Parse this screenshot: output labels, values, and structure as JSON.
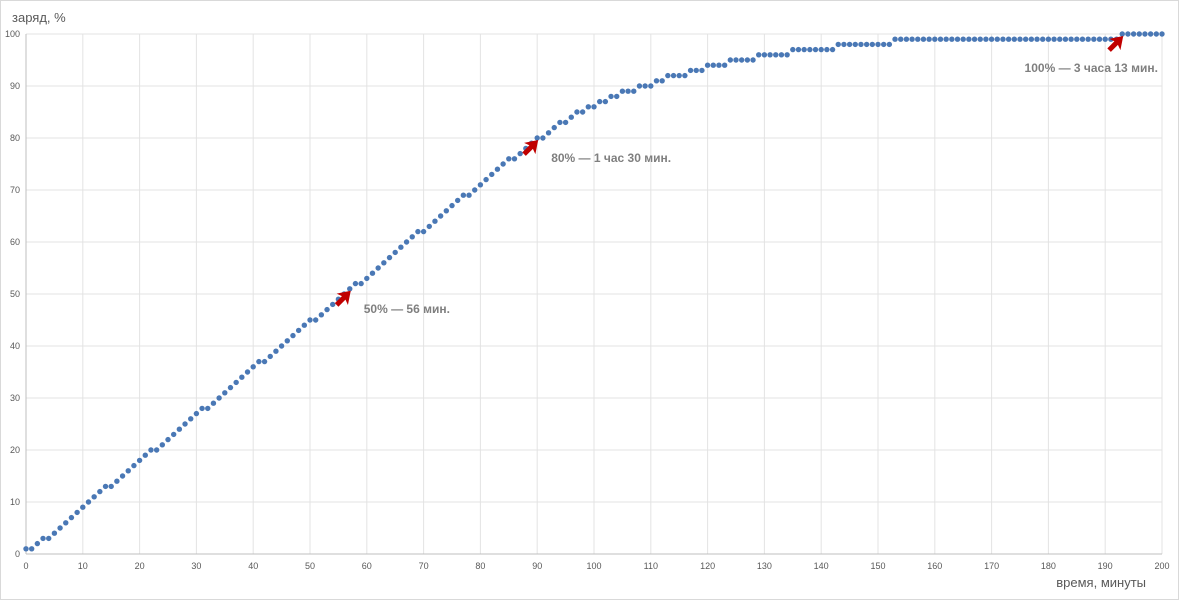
{
  "chart_data": {
    "type": "scatter",
    "xlabel": "время, минуты",
    "ylabel": "заряд, %",
    "xlim": [
      0,
      200
    ],
    "ylim": [
      0,
      100
    ],
    "x_ticks": [
      "0",
      "10",
      "20",
      "30",
      "40",
      "50",
      "60",
      "70",
      "80",
      "90",
      "100",
      "110",
      "120",
      "130",
      "140",
      "150",
      "160",
      "170",
      "180",
      "190",
      "200"
    ],
    "y_ticks": [
      "0",
      "10",
      "20",
      "30",
      "40",
      "50",
      "60",
      "70",
      "80",
      "90",
      "100"
    ],
    "grid": true,
    "marker_color": "#4a78b5",
    "annotation_color": "#c00000",
    "series": [
      {
        "x": [
          0,
          1,
          2,
          3,
          4,
          5,
          6,
          7,
          8,
          9,
          10,
          11,
          12,
          13,
          14,
          15,
          16,
          17,
          18,
          19,
          20,
          21,
          22,
          23,
          24,
          25,
          26,
          27,
          28,
          29,
          30,
          31,
          32,
          33,
          34,
          35,
          36,
          37,
          38,
          39,
          40,
          41,
          42,
          43,
          44,
          45,
          46,
          47,
          48,
          49,
          50,
          51,
          52,
          53,
          54,
          55,
          56,
          57,
          58,
          59,
          60,
          61,
          62,
          63,
          64,
          65,
          66,
          67,
          68,
          69,
          70,
          71,
          72,
          73,
          74,
          75,
          76,
          77,
          78,
          79,
          80,
          81,
          82,
          83,
          84,
          85,
          86,
          87,
          88,
          89,
          90,
          91,
          92,
          93,
          94,
          95,
          96,
          97,
          98,
          99,
          100,
          101,
          102,
          103,
          104,
          105,
          106,
          107,
          108,
          109,
          110,
          111,
          112,
          113,
          114,
          115,
          116,
          117,
          118,
          119,
          120,
          121,
          122,
          123,
          124,
          125,
          126,
          127,
          128,
          129,
          130,
          131,
          132,
          133,
          134,
          135,
          136,
          137,
          138,
          139,
          140,
          141,
          142,
          143,
          144,
          145,
          146,
          147,
          148,
          149,
          150,
          151,
          152,
          153,
          154,
          155,
          156,
          157,
          158,
          159,
          160,
          161,
          162,
          163,
          164,
          165,
          166,
          167,
          168,
          169,
          170,
          171,
          172,
          173,
          174,
          175,
          176,
          177,
          178,
          179,
          180,
          181,
          182,
          183,
          184,
          185,
          186,
          187,
          188,
          189,
          190,
          191,
          192,
          193,
          194,
          195,
          196,
          197,
          198,
          199,
          200
        ],
        "y": [
          1,
          1,
          2,
          3,
          3,
          4,
          5,
          6,
          7,
          8,
          9,
          10,
          11,
          12,
          13,
          13,
          14,
          15,
          16,
          17,
          18,
          19,
          20,
          20,
          21,
          22,
          23,
          24,
          25,
          26,
          27,
          28,
          28,
          29,
          30,
          31,
          32,
          33,
          34,
          35,
          36,
          37,
          37,
          38,
          39,
          40,
          41,
          42,
          43,
          44,
          45,
          45,
          46,
          47,
          48,
          49,
          50,
          51,
          52,
          52,
          53,
          54,
          55,
          56,
          57,
          58,
          59,
          60,
          61,
          62,
          62,
          63,
          64,
          65,
          66,
          67,
          68,
          69,
          69,
          70,
          71,
          72,
          73,
          74,
          75,
          76,
          76,
          77,
          78,
          79,
          80,
          80,
          81,
          82,
          83,
          83,
          84,
          85,
          85,
          86,
          86,
          87,
          87,
          88,
          88,
          89,
          89,
          89,
          90,
          90,
          90,
          91,
          91,
          92,
          92,
          92,
          92,
          93,
          93,
          93,
          94,
          94,
          94,
          94,
          95,
          95,
          95,
          95,
          95,
          96,
          96,
          96,
          96,
          96,
          96,
          97,
          97,
          97,
          97,
          97,
          97,
          97,
          97,
          98,
          98,
          98,
          98,
          98,
          98,
          98,
          98,
          98,
          98,
          99,
          99,
          99,
          99,
          99,
          99,
          99,
          99,
          99,
          99,
          99,
          99,
          99,
          99,
          99,
          99,
          99,
          99,
          99,
          99,
          99,
          99,
          99,
          99,
          99,
          99,
          99,
          99,
          99,
          99,
          99,
          99,
          99,
          99,
          99,
          99,
          99,
          99,
          99,
          99,
          100,
          100,
          100,
          100,
          100,
          100,
          100,
          100
        ]
      }
    ],
    "annotations": [
      {
        "text": "50% — 56 мин.",
        "x": 57,
        "y": 51
      },
      {
        "text": "80% — 1 час 30 мин.",
        "x": 90,
        "y": 80
      },
      {
        "text": "100% — 3 часа 13 мин.",
        "x": 193,
        "y": 100
      }
    ]
  }
}
